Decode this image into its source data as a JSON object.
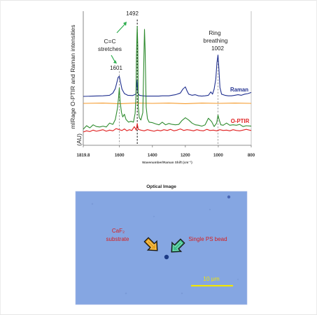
{
  "chart_data": {
    "type": "line",
    "xlabel": "Wavenumber/Raman Shift (cm⁻¹)",
    "ylabel": "mIRage O-PTIR and Raman intensities (AU)",
    "xlim": [
      1819.8,
      800
    ],
    "x_reversed": true,
    "xticks": [
      "1819.8",
      "1600",
      "1400",
      "1200",
      "1000",
      "800"
    ],
    "xtick_values": [
      1819.8,
      1600,
      1400,
      1200,
      1000,
      800
    ],
    "grid": false,
    "series": [
      {
        "name": "Raman",
        "color": "#1f2f8f",
        "x": [
          1819.8,
          1760,
          1700,
          1660,
          1640,
          1625,
          1615,
          1608,
          1601,
          1594,
          1585,
          1570,
          1550,
          1520,
          1500,
          1493,
          1488,
          1480,
          1460,
          1440,
          1420,
          1400,
          1380,
          1360,
          1340,
          1300,
          1260,
          1230,
          1215,
          1200,
          1190,
          1180,
          1160,
          1140,
          1120,
          1100,
          1080,
          1060,
          1045,
          1035,
          1025,
          1015,
          1008,
          1002,
          996,
          990,
          980,
          960,
          940,
          920,
          900,
          880,
          860,
          840,
          820,
          800
        ],
        "y": [
          0.0,
          0.05,
          0.1,
          0.2,
          0.6,
          1.4,
          2.6,
          3.4,
          3.6,
          2.6,
          1.3,
          0.5,
          0.2,
          0.15,
          0.4,
          2.9,
          0.6,
          0.2,
          0.1,
          0.05,
          0.05,
          0.05,
          0.05,
          0.05,
          0.1,
          0.1,
          0.3,
          0.6,
          1.3,
          1.7,
          1.0,
          0.4,
          0.2,
          0.3,
          0.1,
          0.05,
          0.1,
          0.2,
          0.8,
          0.4,
          1.3,
          3.1,
          6.0,
          7.4,
          4.8,
          1.6,
          0.4,
          0.2,
          0.1,
          0.1,
          0.2,
          0.3,
          0.2,
          0.4,
          0.5,
          0.7
        ]
      },
      {
        "name": "",
        "color": "#f59a2b",
        "x": [
          1819.8,
          1700,
          1600,
          1500,
          1400,
          1300,
          1200,
          1100,
          1000,
          900,
          800
        ],
        "y": [
          0.0,
          0.05,
          -0.05,
          0.05,
          0.0,
          0.05,
          -0.05,
          0.05,
          0.0,
          0.05,
          0.0
        ]
      },
      {
        "name": "",
        "color": "#2e8b2e",
        "x": [
          1819.8,
          1800,
          1780,
          1760,
          1740,
          1720,
          1700,
          1680,
          1660,
          1640,
          1625,
          1612,
          1606,
          1601,
          1596,
          1588,
          1580,
          1570,
          1560,
          1545,
          1530,
          1515,
          1505,
          1500,
          1497,
          1494,
          1492,
          1489,
          1486,
          1480,
          1470,
          1458,
          1452,
          1448,
          1444,
          1438,
          1430,
          1420,
          1400,
          1380,
          1360,
          1340,
          1320,
          1300,
          1280,
          1260,
          1240,
          1220,
          1200,
          1180,
          1160,
          1140,
          1120,
          1100,
          1080,
          1060,
          1040,
          1025,
          1010,
          1002,
          995,
          985,
          970,
          950,
          930,
          910,
          890,
          870,
          850,
          830,
          800
        ],
        "y": [
          0.0,
          0.8,
          0.3,
          1.0,
          0.6,
          0.5,
          0.7,
          0.5,
          1.4,
          1.1,
          2.2,
          4.8,
          7.0,
          9.4,
          6.2,
          3.8,
          2.8,
          3.4,
          2.2,
          1.6,
          1.8,
          1.6,
          3.6,
          7.6,
          16.5,
          21.3,
          23.4,
          19.0,
          5.2,
          2.6,
          2.1,
          3.8,
          16.0,
          22.7,
          18.0,
          5.0,
          2.4,
          1.6,
          1.5,
          1.2,
          1.0,
          1.6,
          1.0,
          1.3,
          1.1,
          1.0,
          1.1,
          2.0,
          2.6,
          2.1,
          1.4,
          1.0,
          0.9,
          0.7,
          1.0,
          2.5,
          1.7,
          0.6,
          1.4,
          3.2,
          2.2,
          1.0,
          0.9,
          1.4,
          0.9,
          1.0,
          0.9,
          1.1,
          0.6,
          0.8,
          0.7
        ]
      },
      {
        "name": "O-PTIR",
        "color": "#e02020",
        "x": [
          1819.8,
          1800,
          1780,
          1760,
          1740,
          1720,
          1700,
          1680,
          1660,
          1640,
          1620,
          1601,
          1585,
          1570,
          1555,
          1540,
          1525,
          1510,
          1498,
          1492,
          1486,
          1470,
          1450,
          1430,
          1410,
          1390,
          1370,
          1350,
          1330,
          1310,
          1290,
          1270,
          1250,
          1230,
          1210,
          1190,
          1170,
          1150,
          1130,
          1110,
          1090,
          1070,
          1050,
          1030,
          1010,
          990,
          970,
          950,
          930,
          910,
          890,
          870,
          850,
          830,
          810,
          800
        ],
        "y": [
          0.0,
          0.3,
          0.1,
          0.5,
          0.2,
          0.4,
          0.6,
          0.2,
          0.5,
          0.3,
          0.9,
          0.6,
          0.4,
          0.8,
          0.3,
          0.6,
          0.4,
          1.4,
          0.5,
          2.2,
          0.7,
          0.5,
          0.3,
          0.6,
          0.4,
          0.2,
          0.5,
          0.3,
          0.6,
          0.4,
          0.7,
          0.3,
          0.5,
          0.8,
          0.4,
          0.6,
          0.5,
          0.3,
          0.6,
          0.4,
          0.3,
          0.7,
          0.4,
          0.5,
          0.3,
          0.6,
          0.4,
          0.5,
          0.3,
          0.6,
          0.4,
          0.3,
          0.5,
          0.7,
          0.5,
          0.4
        ]
      }
    ],
    "annotations": [
      {
        "text": "C=C",
        "x": 1548
      },
      {
        "text": "stretches",
        "x": 1548
      },
      {
        "text": "1601",
        "x": 1601
      },
      {
        "text": "1492",
        "x": 1492
      },
      {
        "text": "Ring",
        "x": 1002
      },
      {
        "text": "breathing",
        "x": 1002
      },
      {
        "text": "1002",
        "x": 1002
      }
    ],
    "marker_lines": [
      1601,
      1492,
      1002
    ]
  },
  "optical_image": {
    "title": "Optical Image",
    "substrate_label_line1": "CaF₂",
    "substrate_label_line2": "substrate",
    "bead_label": "Single PS bead",
    "scale_label": "10 μm",
    "background_color": "#85a6e2",
    "text_color": "#d61d1d",
    "scale_color": "#f2e600",
    "arrow_left_color": "#e8a21a",
    "arrow_right_color": "#3cbf8c"
  }
}
